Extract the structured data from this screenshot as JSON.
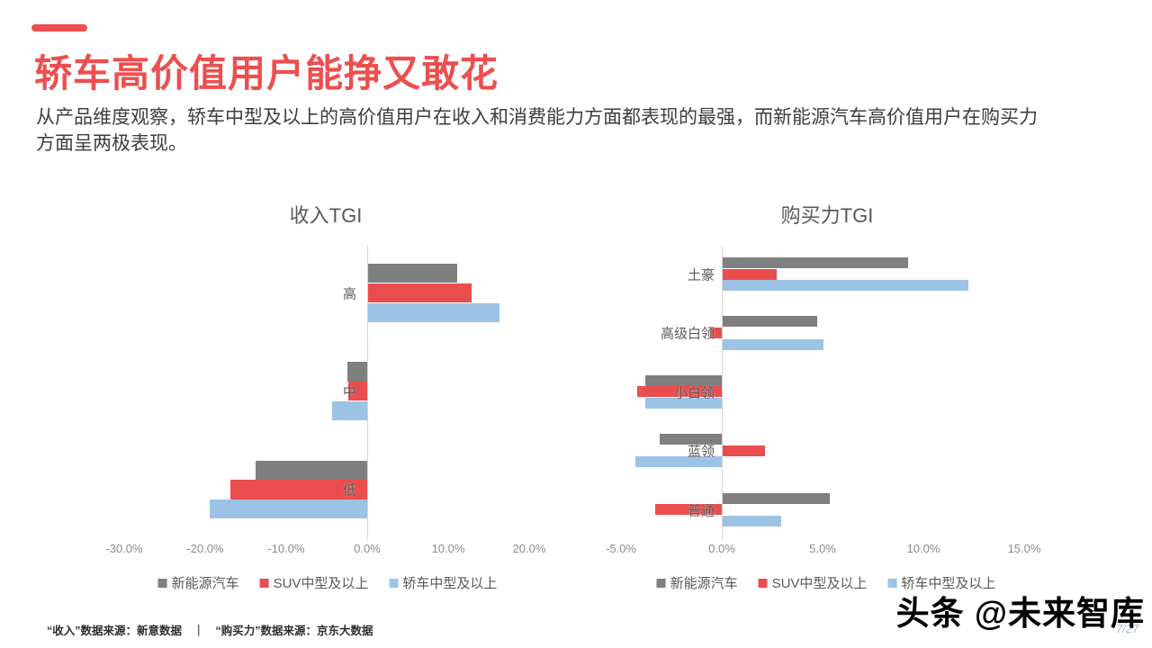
{
  "header": {
    "title": "轿车高价值用户能挣又敢花",
    "subtitle_lines": [
      "从产品维度观察，轿车中型及以上的高价值用户在收入和消费能力方面都表现的最强，而新能源汽车高价值用户在购买力",
      "方面呈两极表现。"
    ],
    "accent_color": "#ec4f4e"
  },
  "chart_data": [
    {
      "type": "bar",
      "orientation": "horizontal",
      "title": "收入TGI",
      "categories": [
        "高",
        "中",
        "低"
      ],
      "series": [
        {
          "name": "新能源汽车",
          "color": "#7f7f7f",
          "values": [
            11.0,
            -2.4,
            -13.8
          ]
        },
        {
          "name": "SUV中型及以上",
          "color": "#ea4d4d",
          "values": [
            12.8,
            -2.3,
            -16.9
          ]
        },
        {
          "name": "轿车中型及以上",
          "color": "#9cc3e5",
          "values": [
            16.2,
            -4.3,
            -19.4
          ]
        }
      ],
      "x_ticks": [
        {
          "label": "-30.0%",
          "value": -30
        },
        {
          "label": "-20.0%",
          "value": -20
        },
        {
          "label": "-10.0%",
          "value": -10
        },
        {
          "label": "0.0%",
          "value": 0
        },
        {
          "label": "10.0%",
          "value": 10
        },
        {
          "label": "20.0%",
          "value": 20
        }
      ],
      "xlim": [
        -33,
        22
      ],
      "unit": "%",
      "grid": false,
      "zero_line": true,
      "legend_position": "bottom"
    },
    {
      "type": "bar",
      "orientation": "horizontal",
      "title": "购买力TGI",
      "categories": [
        "土豪",
        "高级白领",
        "小白领",
        "蓝领",
        "普通"
      ],
      "series": [
        {
          "name": "新能源汽车",
          "color": "#7f7f7f",
          "values": [
            9.2,
            4.7,
            -3.8,
            -3.1,
            5.3
          ]
        },
        {
          "name": "SUV中型及以上",
          "color": "#ea4d4d",
          "values": [
            2.7,
            -0.6,
            -4.2,
            2.1,
            -3.3
          ]
        },
        {
          "name": "轿车中型及以上",
          "color": "#9cc3e5",
          "values": [
            12.2,
            5.0,
            -3.8,
            -4.3,
            2.9
          ]
        }
      ],
      "x_ticks": [
        {
          "label": "-5.0%",
          "value": -5
        },
        {
          "label": "0.0%",
          "value": 0
        },
        {
          "label": "5.0%",
          "value": 5
        },
        {
          "label": "10.0%",
          "value": 10
        },
        {
          "label": "15.0%",
          "value": 15
        }
      ],
      "xlim": [
        -5.5,
        15.5
      ],
      "unit": "%",
      "grid": false,
      "zero_line": true,
      "legend_position": "bottom"
    }
  ],
  "footer": {
    "source_note": "“收入”数据来源：新意数据　｜　“购买力”数据来源：京东大数据",
    "page_number": "7/27",
    "watermark": "头条 @未来智库"
  }
}
